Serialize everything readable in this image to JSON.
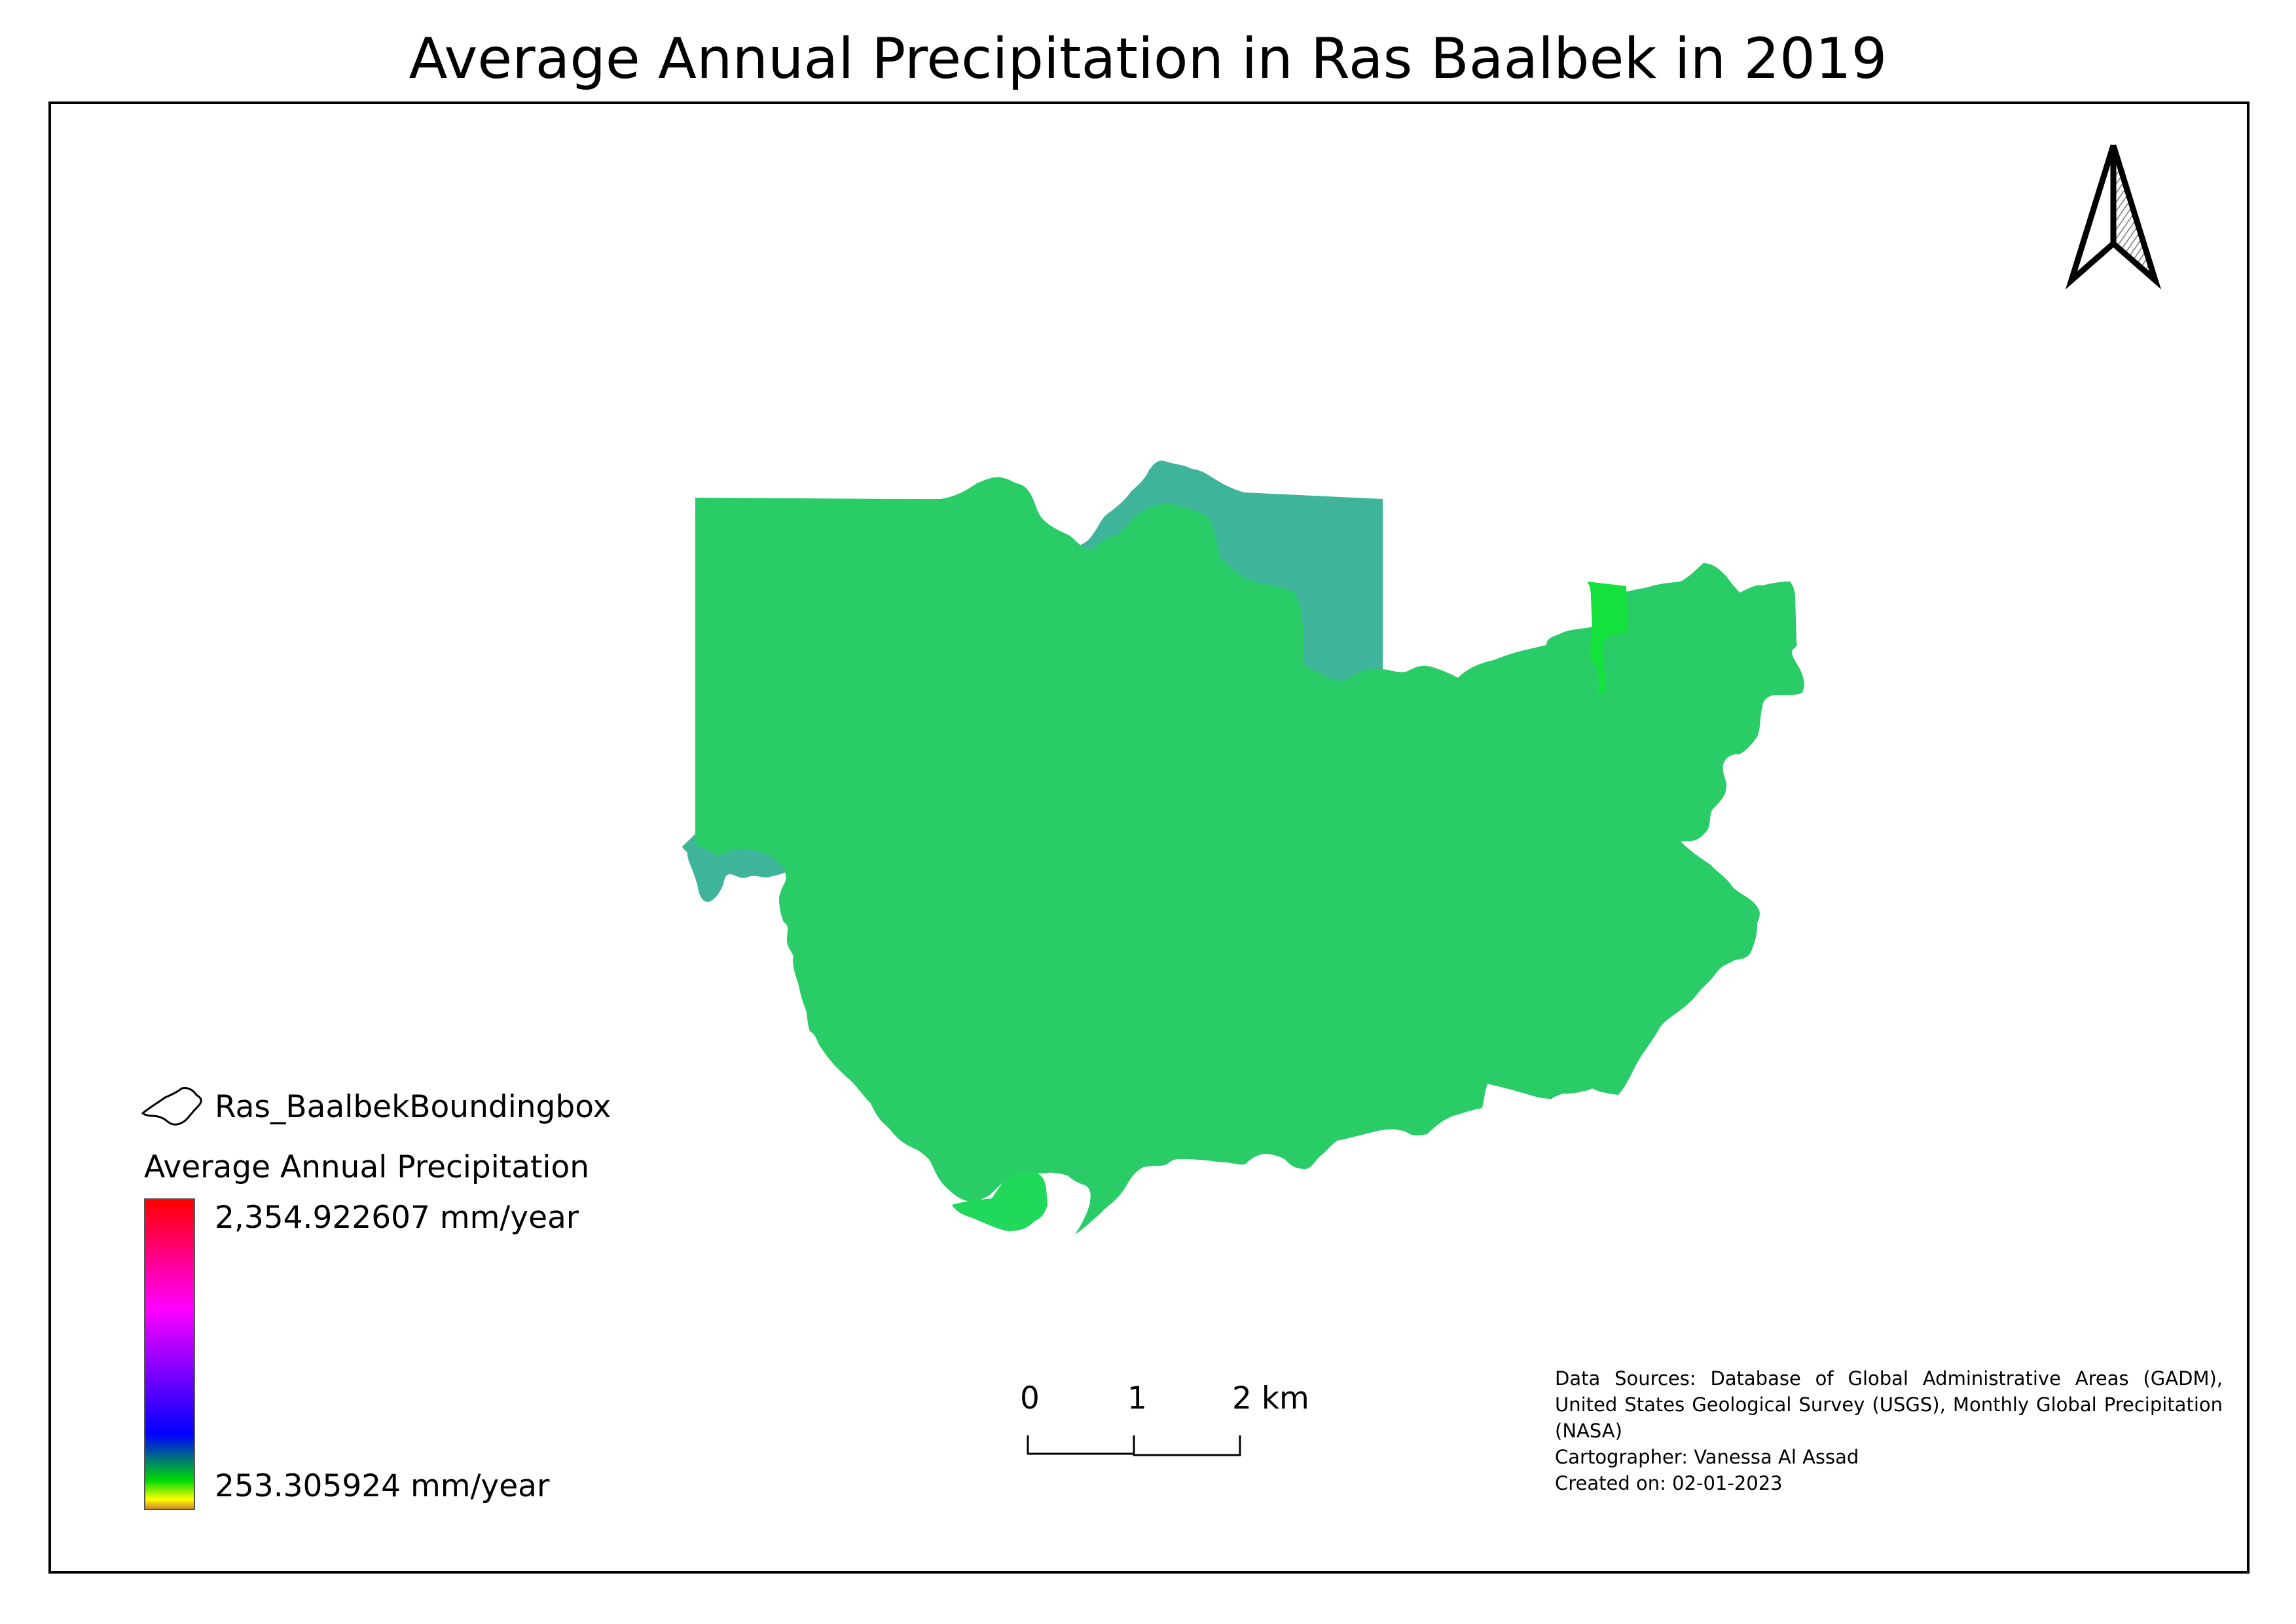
{
  "title": "Average Annual Precipitation in Ras Baalbek in 2019",
  "legend": {
    "boundary_layer": "Ras_BaalbekBoundingbox",
    "raster_title": "Average Annual Precipitation",
    "max_label": "2,354.922607 mm/year",
    "min_label": "253.305924 mm/year",
    "ramp_colors": [
      "#ff0000",
      "#ff00ff",
      "#0000ff",
      "#00dd00",
      "#ffff00",
      "#d08a2a"
    ]
  },
  "scale_bar": {
    "labels": [
      "0",
      "1",
      "2 km"
    ]
  },
  "credits": {
    "sources_line1": "Data Sources:   Database of Global Administrative Areas (GADM),",
    "sources_line2": "United States Geological Survey (USGS), Monthly Global Precipitation",
    "sources_line3": "(NASA)",
    "cartographer": "Cartographer: Vanessa Al Assad",
    "created": "Created on: 02-01-2023"
  },
  "map": {
    "zones": [
      {
        "name": "west-zone",
        "color": "#3eb59b"
      },
      {
        "name": "central-zone",
        "color": "#29cc66"
      },
      {
        "name": "east-tip-zone",
        "color": "#15e23c"
      },
      {
        "name": "south-tip-zone",
        "color": "#20d85a"
      }
    ],
    "north_arrow_icon": "north-arrow-icon"
  }
}
